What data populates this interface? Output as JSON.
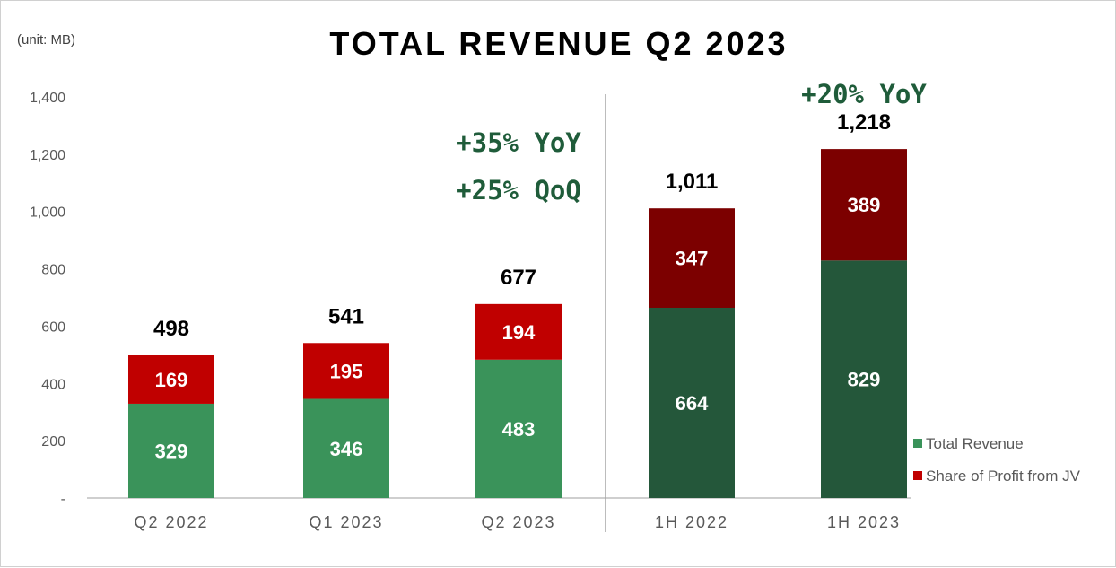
{
  "chart_data": {
    "type": "bar",
    "stacked": true,
    "title": "TOTAL REVENUE Q2 2023",
    "unit_label": "(unit: MB)",
    "categories": [
      "Q2 2022",
      "Q1 2023",
      "Q2 2023",
      "1H 2022",
      "1H 2023"
    ],
    "series": [
      {
        "name": "Total Revenue",
        "values": [
          329,
          346,
          483,
          664,
          829
        ],
        "colors": [
          "#3a935a",
          "#3a935a",
          "#3a935a",
          "#24573a",
          "#24573a"
        ],
        "legend_color": "#3a935a"
      },
      {
        "name": "Share of Profit from JV",
        "values": [
          169,
          195,
          194,
          347,
          389
        ],
        "colors": [
          "#c00000",
          "#c00000",
          "#c00000",
          "#7c0000",
          "#7c0000"
        ],
        "legend_color": "#c00000"
      }
    ],
    "totals": [
      "498",
      "541",
      "677",
      "1,011",
      "1,218"
    ],
    "ylim": [
      0,
      1400
    ],
    "yticks": [
      0,
      200,
      400,
      600,
      800,
      1000,
      1200,
      1400
    ],
    "ytick_labels": [
      "-",
      "200",
      "400",
      "600",
      "800",
      "1,000",
      "1,200",
      "1,400"
    ],
    "grid": false,
    "legend_position": "bottom-right",
    "divider_between": [
      2,
      3
    ],
    "annotations": [
      {
        "text": "+35% YoY",
        "category_index": 2,
        "value": 1240
      },
      {
        "text": "+25% QoQ",
        "category_index": 2,
        "value": 1075
      },
      {
        "text": "+20% YoY",
        "category_index": 4,
        "value": 1410
      }
    ],
    "annotation_color": "#1f5c3a"
  }
}
